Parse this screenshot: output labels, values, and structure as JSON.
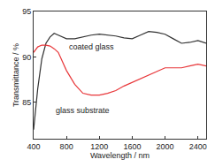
{
  "chart_data": {
    "type": "line",
    "x_label": "Wavelength / nm",
    "y_label": "Transmittance / %",
    "x": [
      400,
      450,
      500,
      550,
      600,
      650,
      700,
      800,
      900,
      1000,
      1100,
      1200,
      1300,
      1400,
      1500,
      1600,
      1700,
      1800,
      1900,
      2000,
      2100,
      2200,
      2300,
      2400,
      2500
    ],
    "series": [
      {
        "name": "coated glass",
        "color": "#333333",
        "values": [
          82.0,
          86.5,
          89.8,
          91.5,
          92.2,
          92.6,
          92.4,
          92.0,
          92.0,
          92.2,
          92.4,
          92.5,
          92.4,
          92.3,
          92.1,
          92.0,
          92.4,
          92.8,
          92.7,
          92.5,
          92.0,
          91.5,
          91.6,
          91.8,
          91.5
        ]
      },
      {
        "name": "glass substrate",
        "color": "#e8373a",
        "values": [
          90.5,
          91.1,
          91.3,
          91.3,
          91.2,
          90.9,
          90.5,
          88.5,
          87.0,
          86.0,
          85.8,
          85.8,
          86.0,
          86.3,
          86.8,
          87.2,
          87.6,
          88.0,
          88.4,
          88.8,
          88.8,
          88.8,
          89.0,
          89.2,
          89.0
        ]
      }
    ],
    "annotations": [
      {
        "text": "coated glass",
        "x": 1100,
        "y": 91.1
      },
      {
        "text": "glass substrate",
        "x": 1000,
        "y": 84.1
      }
    ],
    "xlim": [
      400,
      2500
    ],
    "xticks": [
      400,
      800,
      1200,
      1600,
      2000,
      2400
    ],
    "ylim": [
      81,
      95
    ],
    "yticks": [
      85,
      90,
      95
    ],
    "grid": false
  }
}
